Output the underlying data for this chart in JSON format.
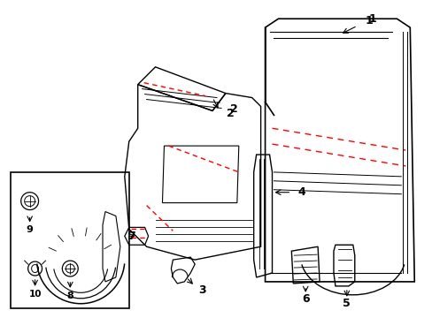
{
  "background_color": "#ffffff",
  "line_color": "#000000",
  "red_dash_color": "#ff0000",
  "fig_width": 4.89,
  "fig_height": 3.6,
  "dpi": 100
}
